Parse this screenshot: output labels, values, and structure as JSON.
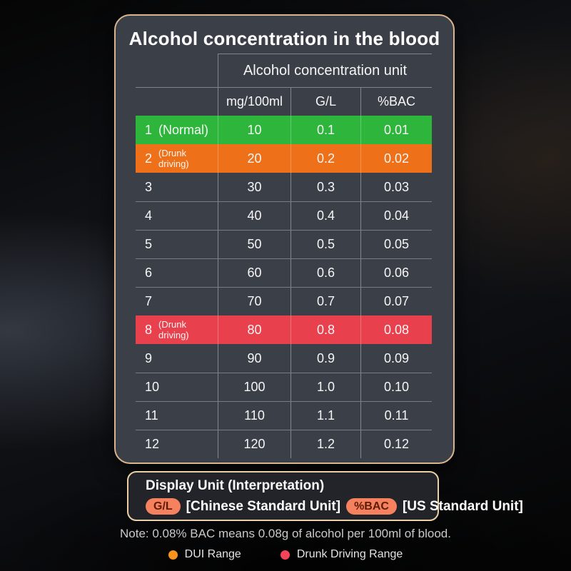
{
  "chart_data": {
    "type": "table",
    "title": "Alcohol concentration in the blood",
    "unit_header": "Alcohol concentration unit",
    "columns": [
      "mg/100ml",
      "G/L",
      "%BAC"
    ],
    "rows": [
      {
        "num": "1",
        "annotation": "(Normal)",
        "values": [
          "10",
          "0.1",
          "0.01"
        ],
        "highlight": "green"
      },
      {
        "num": "2",
        "annotation": "(Drunk driving)",
        "values": [
          "20",
          "0.2",
          "0.02"
        ],
        "highlight": "orange"
      },
      {
        "num": "3",
        "annotation": "",
        "values": [
          "30",
          "0.3",
          "0.03"
        ],
        "highlight": ""
      },
      {
        "num": "4",
        "annotation": "",
        "values": [
          "40",
          "0.4",
          "0.04"
        ],
        "highlight": ""
      },
      {
        "num": "5",
        "annotation": "",
        "values": [
          "50",
          "0.5",
          "0.05"
        ],
        "highlight": ""
      },
      {
        "num": "6",
        "annotation": "",
        "values": [
          "60",
          "0.6",
          "0.06"
        ],
        "highlight": ""
      },
      {
        "num": "7",
        "annotation": "",
        "values": [
          "70",
          "0.7",
          "0.07"
        ],
        "highlight": ""
      },
      {
        "num": "8",
        "annotation": "(Drunk driving)",
        "values": [
          "80",
          "0.8",
          "0.08"
        ],
        "highlight": "red"
      },
      {
        "num": "9",
        "annotation": "",
        "values": [
          "90",
          "0.9",
          "0.09"
        ],
        "highlight": ""
      },
      {
        "num": "10",
        "annotation": "",
        "values": [
          "100",
          "1.0",
          "0.10"
        ],
        "highlight": ""
      },
      {
        "num": "11",
        "annotation": "",
        "values": [
          "110",
          "1.1",
          "0.11"
        ],
        "highlight": ""
      },
      {
        "num": "12",
        "annotation": "",
        "values": [
          "120",
          "1.2",
          "0.12"
        ],
        "highlight": ""
      }
    ]
  },
  "panel": {
    "title": "Display Unit (Interpretation)",
    "items": [
      {
        "pill": "G/L",
        "label": "[Chinese Standard Unit]"
      },
      {
        "pill": "%BAC",
        "label": "[US Standard Unit]"
      }
    ]
  },
  "note": "Note: 0.08% BAC means 0.08g of alcohol per 100ml of blood.",
  "legend": [
    {
      "label": "DUI Range",
      "color": "#f7931e"
    },
    {
      "label": "Drunk Driving Range",
      "color": "#f4445a"
    }
  ],
  "colors": {
    "green": "#2db53c",
    "orange": "#ee7018",
    "red": "#e9404d",
    "pill_bg": "#f5815e",
    "pill_text": "#5e1b05",
    "card_border": "#d9b48c",
    "panel_border": "#ecd0a5"
  }
}
